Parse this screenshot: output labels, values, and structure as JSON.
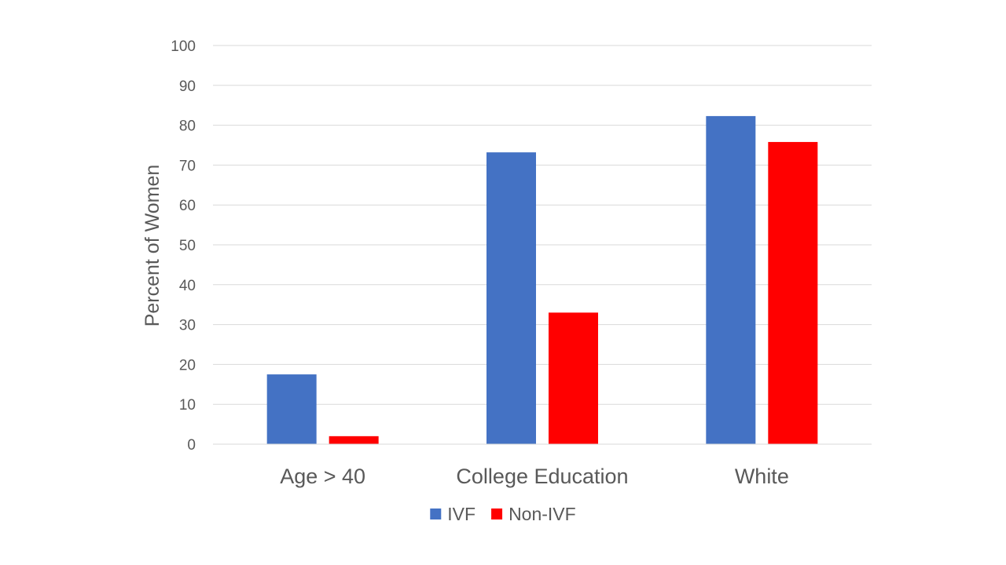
{
  "chart_data": {
    "type": "bar",
    "categories": [
      "Age > 40",
      "College Education",
      "White"
    ],
    "series": [
      {
        "name": "IVF",
        "values": [
          17.5,
          73.2,
          82.3
        ],
        "color": "#4472c4"
      },
      {
        "name": "Non-IVF",
        "values": [
          2,
          33,
          75.8
        ],
        "color": "#ff0000"
      }
    ],
    "title": "",
    "xlabel": "",
    "ylabel": "Percent of Women",
    "ylim": [
      0,
      100
    ],
    "yticks": [
      0,
      10,
      20,
      30,
      40,
      50,
      60,
      70,
      80,
      90,
      100
    ],
    "grid": true,
    "legend": "bottom"
  }
}
